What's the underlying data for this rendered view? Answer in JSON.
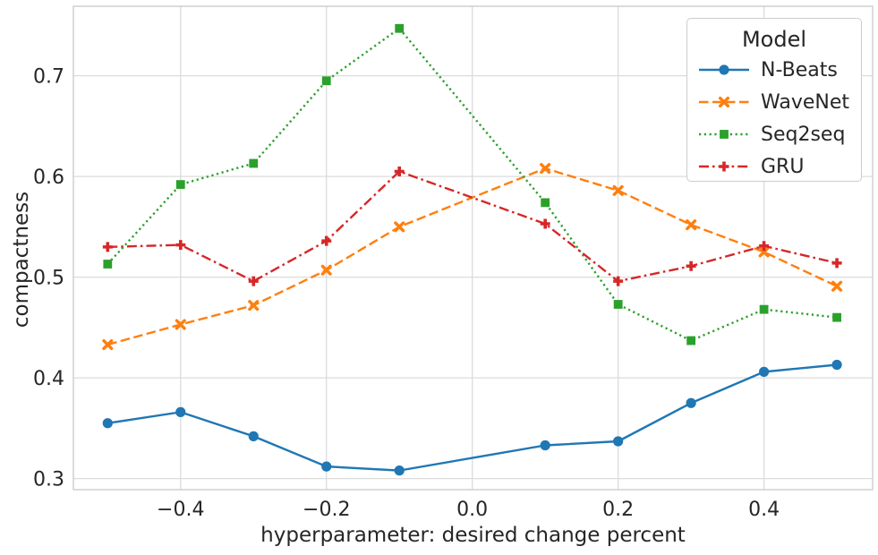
{
  "chart_data": {
    "type": "line",
    "title": "",
    "xlabel": "hyperparameter: desired change percent",
    "ylabel": "compactness",
    "xlim": [
      -0.547,
      0.549
    ],
    "ylim": [
      0.289,
      0.769
    ],
    "grid": true,
    "x_ticks": {
      "values": [
        -0.4,
        -0.2,
        0.0,
        0.2,
        0.4
      ],
      "labels": [
        "−0.4",
        "−0.2",
        "0.0",
        "0.2",
        "0.4"
      ]
    },
    "y_ticks": {
      "values": [
        0.3,
        0.4,
        0.5,
        0.6,
        0.7
      ],
      "labels": [
        "0.3",
        "0.4",
        "0.5",
        "0.6",
        "0.7"
      ]
    },
    "x": [
      -0.5,
      -0.4,
      -0.3,
      -0.2,
      -0.1,
      0.1,
      0.2,
      0.3,
      0.4,
      0.5
    ],
    "series": [
      {
        "name": "N-Beats",
        "color": "#1f77b4",
        "line_style": "solid",
        "marker": "circle",
        "values": [
          0.355,
          0.366,
          0.342,
          0.312,
          0.308,
          0.333,
          0.337,
          0.375,
          0.406,
          0.413
        ]
      },
      {
        "name": "WaveNet",
        "color": "#ff7f0e",
        "line_style": "dashed",
        "marker": "x",
        "values": [
          0.433,
          0.453,
          0.472,
          0.507,
          0.55,
          0.608,
          0.586,
          0.552,
          0.525,
          0.491
        ]
      },
      {
        "name": "Seq2seq",
        "color": "#2ca02c",
        "line_style": "dotted",
        "marker": "square",
        "values": [
          0.513,
          0.592,
          0.613,
          0.695,
          0.747,
          0.574,
          0.473,
          0.437,
          0.468,
          0.46
        ]
      },
      {
        "name": "GRU",
        "color": "#d62728",
        "line_style": "dashdot",
        "marker": "plus",
        "values": [
          0.53,
          0.532,
          0.496,
          0.536,
          0.605,
          0.553,
          0.496,
          0.511,
          0.531,
          0.514
        ]
      }
    ],
    "legend": {
      "title": "Model",
      "position": "upper right"
    }
  },
  "style": {
    "grid_color": "#dcdcdc",
    "spine_color": "#cccccc",
    "text_color": "#262626"
  }
}
